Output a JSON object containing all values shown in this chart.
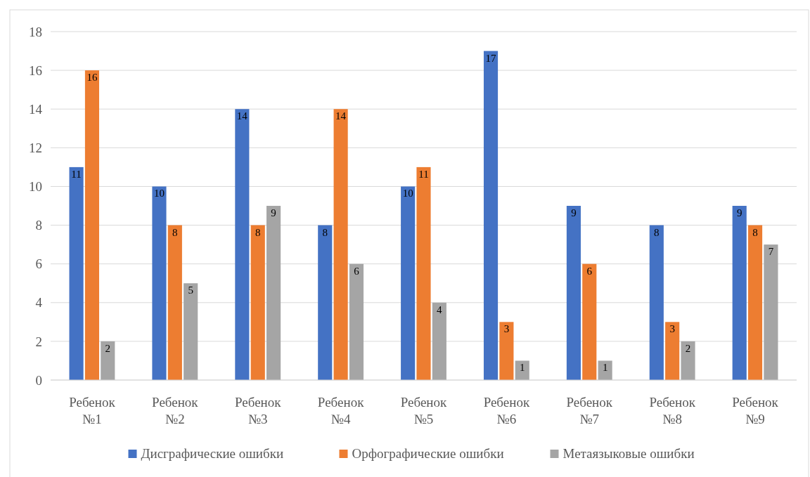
{
  "chart_data": {
    "type": "bar",
    "categories": [
      "Ребенок №1",
      "Ребенок №2",
      "Ребенок №3",
      "Ребенок №4",
      "Ребенок №5",
      "Ребенок №6",
      "Ребенок №7",
      "Ребенок №8",
      "Ребенок №9"
    ],
    "series": [
      {
        "name": "Дисграфические ошибки",
        "color": "#4472c4",
        "values": [
          11,
          10,
          14,
          8,
          10,
          17,
          9,
          8,
          9
        ]
      },
      {
        "name": "Орфографические ошибки",
        "color": "#ed7d31",
        "values": [
          16,
          8,
          8,
          14,
          11,
          3,
          6,
          3,
          8
        ]
      },
      {
        "name": "Метаязыковые ошибки",
        "color": "#a5a5a5",
        "values": [
          2,
          5,
          9,
          6,
          4,
          1,
          1,
          2,
          7
        ]
      }
    ],
    "ylim": [
      0,
      18
    ],
    "yticks": [
      0,
      2,
      4,
      6,
      8,
      10,
      12,
      14,
      16,
      18
    ],
    "grid": "y",
    "legend": "bottom",
    "data_labels": true
  }
}
